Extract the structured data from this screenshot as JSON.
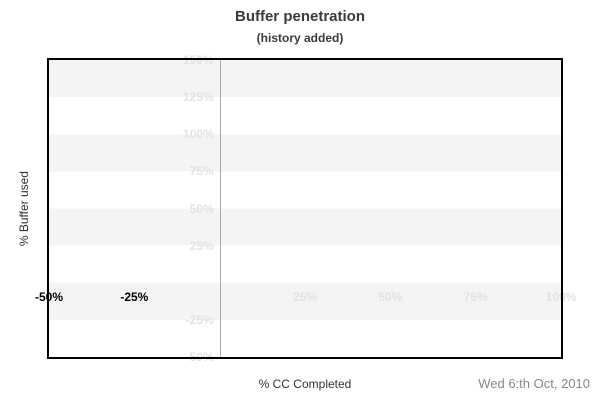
{
  "chart_data": {
    "type": "line",
    "title": "Buffer penetration",
    "subtitle": "(history added)",
    "xlabel": "% CC Completed",
    "ylabel": "% Buffer used",
    "footer_date": "Wed 6:th Oct, 2010",
    "xlim": [
      -50,
      100
    ],
    "ylim": [
      -50,
      150
    ],
    "gridline_x": 0,
    "grid": "horizontal-bands-alternating",
    "legend": "none",
    "series": [],
    "x_ticks": [
      {
        "value": -50,
        "label": "-50%",
        "emphasis": "dark"
      },
      {
        "value": -25,
        "label": "-25%",
        "emphasis": "dark"
      },
      {
        "value": 25,
        "label": "25%",
        "emphasis": "light"
      },
      {
        "value": 50,
        "label": "50%",
        "emphasis": "light"
      },
      {
        "value": 75,
        "label": "75%",
        "emphasis": "light"
      },
      {
        "value": 100,
        "label": "100%",
        "emphasis": "light"
      }
    ],
    "y_ticks": [
      {
        "value": 150,
        "label": "150%"
      },
      {
        "value": 125,
        "label": "125%"
      },
      {
        "value": 100,
        "label": "100%"
      },
      {
        "value": 75,
        "label": "75%"
      },
      {
        "value": 50,
        "label": "50%"
      },
      {
        "value": 25,
        "label": "25%"
      },
      {
        "value": -25,
        "label": "-25%"
      },
      {
        "value": -50,
        "label": "-50%"
      }
    ],
    "colors": {
      "band": "#f4f4f4",
      "tick_light": "#e2e2e2",
      "tick_dark": "#000000",
      "gridline": "#a9a9a9",
      "title": "#3b3b3b",
      "date": "#878787",
      "axis_label": "#333333",
      "border": "#000000"
    }
  }
}
